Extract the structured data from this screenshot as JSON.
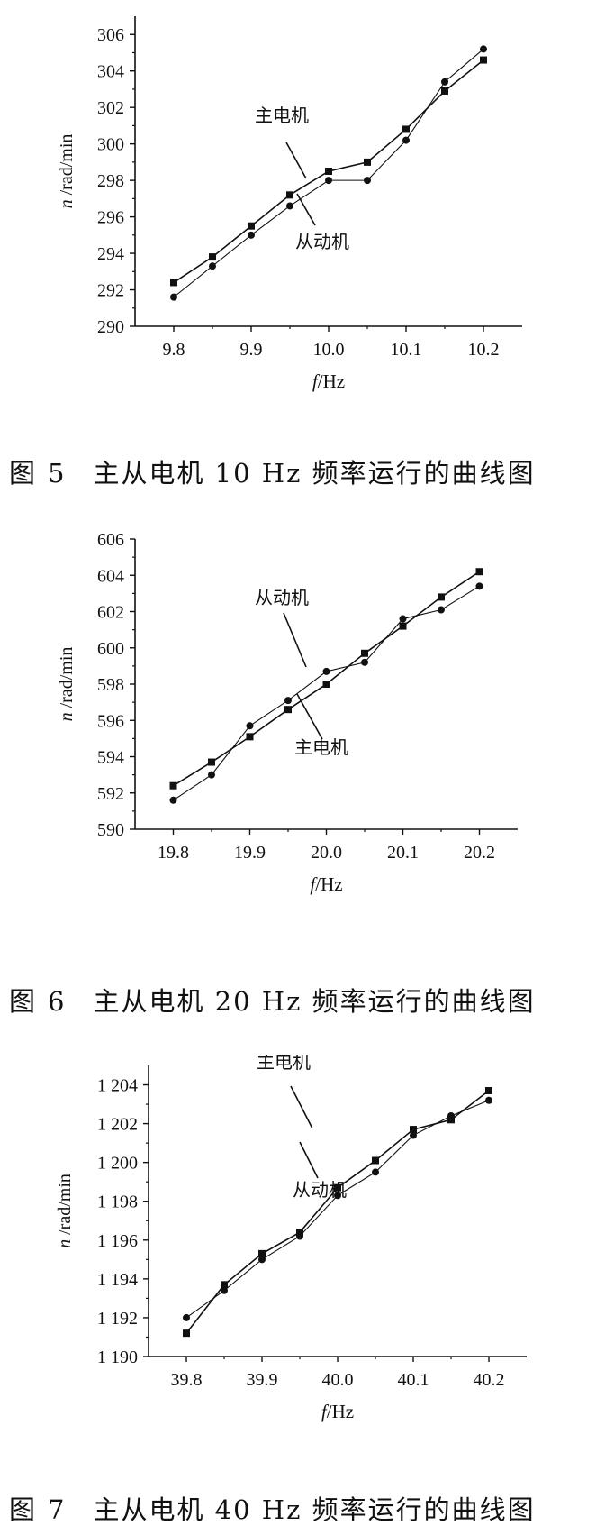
{
  "chart_data": [
    {
      "type": "line",
      "caption_label": "图",
      "caption_number": "5",
      "caption_text": "主从电机 10 Hz 频率运行的曲线图",
      "xlabel_var": "f",
      "xlabel_unit": "/Hz",
      "ylabel_var": "n",
      "ylabel_unit": " /rad/min",
      "xlim": [
        9.75,
        10.25
      ],
      "ylim": [
        290,
        307
      ],
      "x_ticks": [
        9.8,
        9.9,
        10.0,
        10.1,
        10.2
      ],
      "x_tick_labels": [
        "9.8",
        "9.9",
        "10.0",
        "10.1",
        "10.2"
      ],
      "y_ticks": [
        290,
        292,
        294,
        296,
        298,
        300,
        302,
        304,
        306
      ],
      "y_tick_labels": [
        "290",
        "292",
        "294",
        "296",
        "298",
        "300",
        "302",
        "304",
        "306"
      ],
      "x": [
        9.8,
        9.85,
        9.9,
        9.95,
        10.0,
        10.05,
        10.1,
        10.15,
        10.2
      ],
      "series": [
        {
          "name": "主电机",
          "marker": "square",
          "values": [
            292.4,
            293.8,
            295.5,
            297.2,
            298.5,
            299.0,
            300.8,
            302.9,
            304.6
          ]
        },
        {
          "name": "从动机",
          "marker": "circle",
          "values": [
            291.6,
            293.3,
            295.0,
            296.6,
            298.0,
            298.0,
            300.2,
            303.4,
            305.2
          ]
        }
      ],
      "annotations": [
        {
          "text": "主电机",
          "series": 0
        },
        {
          "text": "从动机",
          "series": 1
        }
      ]
    },
    {
      "type": "line",
      "caption_label": "图",
      "caption_number": "6",
      "caption_text": "主从电机 20 Hz 频率运行的曲线图",
      "xlabel_var": "f",
      "xlabel_unit": "/Hz",
      "ylabel_var": "n",
      "ylabel_unit": " /rad/min",
      "xlim": [
        19.75,
        20.25
      ],
      "ylim": [
        590,
        606
      ],
      "x_ticks": [
        19.8,
        19.9,
        20.0,
        20.1,
        20.2
      ],
      "x_tick_labels": [
        "19.8",
        "19.9",
        "20.0",
        "20.1",
        "20.2"
      ],
      "y_ticks": [
        590,
        592,
        594,
        596,
        598,
        600,
        602,
        604,
        606
      ],
      "y_tick_labels": [
        "590",
        "592",
        "594",
        "596",
        "598",
        "600",
        "602",
        "604",
        "606"
      ],
      "x": [
        19.8,
        19.85,
        19.9,
        19.95,
        20.0,
        20.05,
        20.1,
        20.15,
        20.2
      ],
      "series": [
        {
          "name": "主电机",
          "marker": "square",
          "values": [
            592.4,
            593.7,
            595.1,
            596.6,
            598.0,
            599.7,
            601.2,
            602.8,
            604.2
          ]
        },
        {
          "name": "从动机",
          "marker": "circle",
          "values": [
            591.6,
            593.0,
            595.7,
            597.1,
            598.7,
            599.2,
            601.6,
            602.1,
            603.4
          ]
        }
      ],
      "annotations": [
        {
          "text": "从动机",
          "series": 1
        },
        {
          "text": "主电机",
          "series": 0
        }
      ]
    },
    {
      "type": "line",
      "caption_label": "图",
      "caption_number": "7",
      "caption_text": "主从电机 40 Hz 频率运行的曲线图",
      "xlabel_var": "f",
      "xlabel_unit": "/Hz",
      "ylabel_var": "n",
      "ylabel_unit": " /rad/min",
      "xlim": [
        39.75,
        40.25
      ],
      "ylim": [
        1190,
        1205
      ],
      "x_ticks": [
        39.8,
        39.9,
        40.0,
        40.1,
        40.2
      ],
      "x_tick_labels": [
        "39.8",
        "39.9",
        "40.0",
        "40.1",
        "40.2"
      ],
      "y_ticks": [
        1190,
        1192,
        1194,
        1196,
        1198,
        1200,
        1202,
        1204
      ],
      "y_tick_labels": [
        "1 190",
        "1 192",
        "1 194",
        "1 196",
        "1 198",
        "1 200",
        "1 202",
        "1 204"
      ],
      "x": [
        39.8,
        39.85,
        39.9,
        39.95,
        40.0,
        40.05,
        40.1,
        40.15,
        40.2
      ],
      "series": [
        {
          "name": "主电机",
          "marker": "square",
          "values": [
            1191.2,
            1193.7,
            1195.3,
            1196.4,
            1198.7,
            1200.1,
            1201.7,
            1202.2,
            1203.7
          ]
        },
        {
          "name": "从动机",
          "marker": "circle",
          "values": [
            1192.0,
            1193.4,
            1195.0,
            1196.2,
            1198.3,
            1199.5,
            1201.4,
            1202.4,
            1203.2
          ]
        }
      ],
      "annotations": [
        {
          "text": "主电机",
          "series": 0
        },
        {
          "text": "从动机",
          "series": 1
        }
      ]
    }
  ]
}
